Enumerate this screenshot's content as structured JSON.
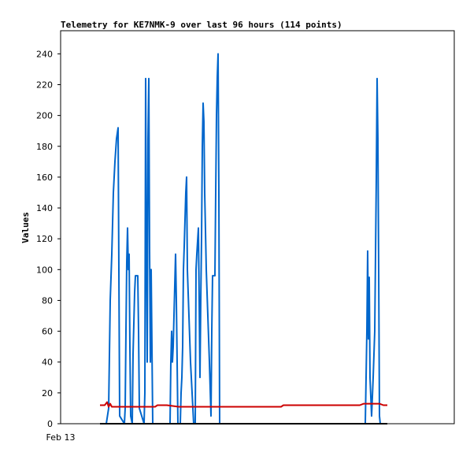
{
  "chart_data": {
    "type": "line",
    "title": "Telemetry for KE7NMK-9 over last 96 hours (114 points)",
    "xlabel": "",
    "ylabel": "Values",
    "ylim": [
      0,
      255
    ],
    "xlim": [
      0,
      1
    ],
    "yticks": [
      0,
      20,
      40,
      60,
      80,
      100,
      120,
      140,
      160,
      180,
      200,
      220,
      240
    ],
    "xticks": [
      {
        "label": "Feb 13",
        "x": 0
      }
    ],
    "grid": false,
    "legend": "none",
    "series": [
      {
        "color": "#0066cc",
        "points": [
          [
            0.1,
            0
          ],
          [
            0.11,
            0
          ],
          [
            0.116,
            0
          ],
          [
            0.122,
            10
          ],
          [
            0.126,
            80
          ],
          [
            0.13,
            110
          ],
          [
            0.134,
            150
          ],
          [
            0.138,
            170
          ],
          [
            0.142,
            185
          ],
          [
            0.146,
            192
          ],
          [
            0.148,
            100
          ],
          [
            0.15,
            5
          ],
          [
            0.162,
            0
          ],
          [
            0.164,
            10
          ],
          [
            0.166,
            60
          ],
          [
            0.168,
            105
          ],
          [
            0.17,
            127
          ],
          [
            0.172,
            100
          ],
          [
            0.174,
            110
          ],
          [
            0.176,
            50
          ],
          [
            0.178,
            5
          ],
          [
            0.182,
            0
          ],
          [
            0.184,
            45
          ],
          [
            0.188,
            85
          ],
          [
            0.19,
            96
          ],
          [
            0.194,
            96
          ],
          [
            0.196,
            96
          ],
          [
            0.198,
            60
          ],
          [
            0.2,
            10
          ],
          [
            0.212,
            0
          ],
          [
            0.214,
            20
          ],
          [
            0.216,
            224
          ],
          [
            0.218,
            110
          ],
          [
            0.22,
            40
          ],
          [
            0.222,
            185
          ],
          [
            0.224,
            224
          ],
          [
            0.226,
            112
          ],
          [
            0.228,
            40
          ],
          [
            0.23,
            100
          ],
          [
            0.234,
            0
          ],
          [
            0.278,
            0
          ],
          [
            0.28,
            40
          ],
          [
            0.282,
            60
          ],
          [
            0.284,
            40
          ],
          [
            0.286,
            50
          ],
          [
            0.288,
            70
          ],
          [
            0.29,
            90
          ],
          [
            0.292,
            110
          ],
          [
            0.294,
            80
          ],
          [
            0.298,
            0
          ],
          [
            0.304,
            0
          ],
          [
            0.306,
            20
          ],
          [
            0.308,
            30
          ],
          [
            0.31,
            50
          ],
          [
            0.312,
            100
          ],
          [
            0.314,
            115
          ],
          [
            0.318,
            150
          ],
          [
            0.32,
            160
          ],
          [
            0.322,
            100
          ],
          [
            0.326,
            70
          ],
          [
            0.33,
            40
          ],
          [
            0.334,
            20
          ],
          [
            0.338,
            0
          ],
          [
            0.342,
            0
          ],
          [
            0.344,
            100
          ],
          [
            0.346,
            110
          ],
          [
            0.35,
            127
          ],
          [
            0.352,
            80
          ],
          [
            0.354,
            30
          ],
          [
            0.356,
            80
          ],
          [
            0.358,
            120
          ],
          [
            0.36,
            180
          ],
          [
            0.362,
            208
          ],
          [
            0.364,
            196
          ],
          [
            0.366,
            150
          ],
          [
            0.37,
            100
          ],
          [
            0.374,
            70
          ],
          [
            0.378,
            40
          ],
          [
            0.382,
            5
          ],
          [
            0.384,
            60
          ],
          [
            0.386,
            96
          ],
          [
            0.39,
            96
          ],
          [
            0.392,
            96
          ],
          [
            0.394,
            150
          ],
          [
            0.396,
            200
          ],
          [
            0.398,
            225
          ],
          [
            0.4,
            240
          ],
          [
            0.402,
            150
          ],
          [
            0.404,
            0
          ],
          [
            0.45,
            0
          ],
          [
            0.6,
            0
          ],
          [
            0.76,
            0
          ],
          [
            0.774,
            0
          ],
          [
            0.778,
            60
          ],
          [
            0.78,
            112
          ],
          [
            0.782,
            55
          ],
          [
            0.784,
            95
          ],
          [
            0.786,
            30
          ],
          [
            0.79,
            5
          ],
          [
            0.794,
            30
          ],
          [
            0.798,
            60
          ],
          [
            0.8,
            110
          ],
          [
            0.802,
            160
          ],
          [
            0.804,
            224
          ],
          [
            0.806,
            185
          ],
          [
            0.808,
            100
          ],
          [
            0.81,
            5
          ],
          [
            0.812,
            0
          ],
          [
            0.83,
            0
          ]
        ]
      },
      {
        "color": "#cc0000",
        "points": [
          [
            0.1,
            12
          ],
          [
            0.112,
            12
          ],
          [
            0.118,
            14
          ],
          [
            0.122,
            11
          ],
          [
            0.126,
            13
          ],
          [
            0.13,
            11
          ],
          [
            0.136,
            11
          ],
          [
            0.146,
            11
          ],
          [
            0.16,
            11
          ],
          [
            0.2,
            11
          ],
          [
            0.24,
            11
          ],
          [
            0.246,
            12
          ],
          [
            0.27,
            12
          ],
          [
            0.3,
            11
          ],
          [
            0.36,
            11
          ],
          [
            0.42,
            11
          ],
          [
            0.5,
            11
          ],
          [
            0.56,
            11
          ],
          [
            0.566,
            12
          ],
          [
            0.62,
            12
          ],
          [
            0.7,
            12
          ],
          [
            0.76,
            12
          ],
          [
            0.77,
            13
          ],
          [
            0.79,
            13
          ],
          [
            0.81,
            13
          ],
          [
            0.82,
            12
          ],
          [
            0.83,
            12
          ]
        ]
      },
      {
        "color": "#000000",
        "points": [
          [
            0.1,
            0
          ],
          [
            0.83,
            0
          ]
        ]
      }
    ]
  }
}
